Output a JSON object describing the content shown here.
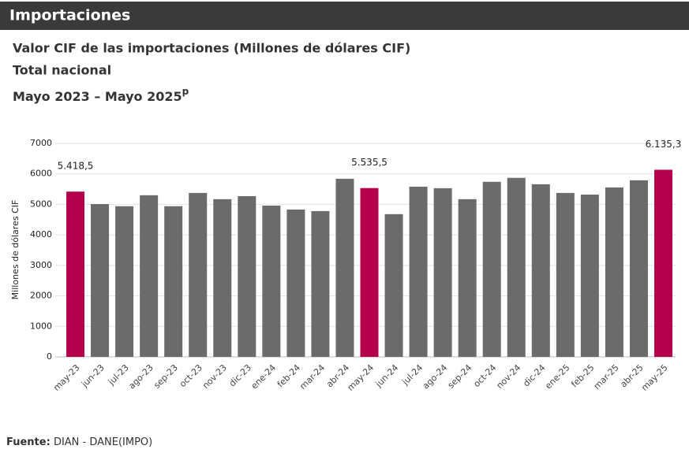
{
  "chart_data": {
    "type": "bar",
    "header": "Importaciones",
    "title": "Valor CIF de las importaciones (Millones de dólares CIF)",
    "subtitle": "Total nacional",
    "date_range": "Mayo 2023 – Mayo 2025",
    "date_note": "p",
    "y_label": "Millones de dólares CIF",
    "source_label": "Fuente:",
    "source": "DIAN - DANE(IMPO)",
    "categories": [
      "may-23",
      "jun-23",
      "jul-23",
      "ago-23",
      "sep-23",
      "oct-23",
      "nov-23",
      "dic-23",
      "ene-24",
      "feb-24",
      "mar-24",
      "abr-24",
      "may-24",
      "jun-24",
      "jul-24",
      "ago-24",
      "sep-24",
      "oct-24",
      "nov-24",
      "dic-24",
      "ene-25",
      "feb-25",
      "mar-25",
      "abr-25",
      "may-25"
    ],
    "values": [
      5418.5,
      5010,
      4940,
      5300,
      4940,
      5375,
      5170,
      5270,
      4960,
      4830,
      4780,
      5840,
      5535.5,
      4680,
      5580,
      5530,
      5170,
      5740,
      5870,
      5660,
      5375,
      5320,
      5555,
      5790,
      6135.3
    ],
    "value_labels": [
      "5.418,5",
      null,
      null,
      null,
      null,
      null,
      null,
      null,
      null,
      null,
      null,
      null,
      "5.535,5",
      null,
      null,
      null,
      null,
      null,
      null,
      null,
      null,
      null,
      null,
      null,
      "6.135,3"
    ],
    "colors": [
      "#b5004b",
      "#6b6b6b",
      "#6b6b6b",
      "#6b6b6b",
      "#6b6b6b",
      "#6b6b6b",
      "#6b6b6b",
      "#6b6b6b",
      "#6b6b6b",
      "#6b6b6b",
      "#6b6b6b",
      "#6b6b6b",
      "#b5004b",
      "#6b6b6b",
      "#6b6b6b",
      "#6b6b6b",
      "#6b6b6b",
      "#6b6b6b",
      "#6b6b6b",
      "#6b6b6b",
      "#6b6b6b",
      "#6b6b6b",
      "#6b6b6b",
      "#6b6b6b",
      "#b5004b"
    ],
    "ylim": [
      0,
      7000
    ],
    "yticks": [
      0,
      1000,
      2000,
      3000,
      4000,
      5000,
      6000,
      7000
    ],
    "grid": true
  }
}
